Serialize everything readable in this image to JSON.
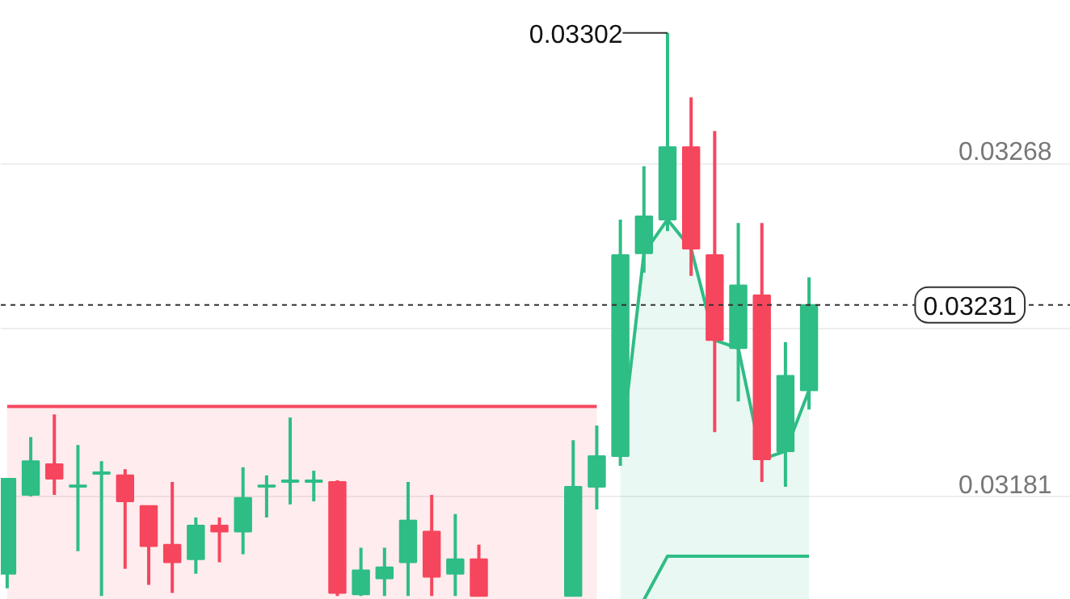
{
  "chart_data": {
    "type": "candlestick",
    "categories": [
      null,
      null,
      null,
      null,
      null,
      null,
      null,
      null,
      null,
      null,
      null,
      null,
      null,
      null,
      null,
      null,
      null,
      null,
      null,
      null,
      null,
      null,
      null,
      null,
      null,
      null,
      null,
      null,
      null,
      null,
      null,
      null,
      null,
      null,
      null
    ],
    "ohlc": [
      [
        0.031608,
        0.031856,
        0.03157,
        0.031856
      ],
      [
        0.031814,
        0.031965,
        0.03181,
        0.031902
      ],
      [
        0.031894,
        0.032024,
        0.031814,
        0.031856
      ],
      [
        0.031835,
        0.031944,
        0.031667,
        0.031839
      ],
      [
        0.031869,
        0.031902,
        0.03155,
        0.031873
      ],
      [
        0.031865,
        0.031881,
        0.031621,
        0.031797
      ],
      [
        0.031785,
        0.031785,
        0.031579,
        0.03168
      ],
      [
        0.031684,
        0.031848,
        0.031558,
        0.031638
      ],
      [
        0.031646,
        0.031755,
        0.031608,
        0.031734
      ],
      [
        0.031734,
        0.031755,
        0.031638,
        0.031718
      ],
      [
        0.031718,
        0.031886,
        0.031659,
        0.031806
      ],
      [
        0.031835,
        0.031865,
        0.031755,
        0.031839
      ],
      [
        0.031848,
        0.032016,
        0.031789,
        0.031852
      ],
      [
        0.031848,
        0.031877,
        0.031797,
        0.031852
      ],
      [
        0.031848,
        0.031852,
        0.03155,
        0.031558
      ],
      [
        0.031554,
        0.031676,
        0.03155,
        0.031617
      ],
      [
        0.031596,
        0.031676,
        0.03155,
        0.031625
      ],
      [
        0.031638,
        0.031848,
        0.03155,
        0.031747
      ],
      [
        0.031718,
        0.031814,
        0.03155,
        0.0316
      ],
      [
        0.031608,
        0.031764,
        0.03155,
        0.031646
      ],
      [
        0.031646,
        0.031684,
        0.03155,
        0.03155
      ],
      null,
      null,
      null,
      [
        0.03155,
        0.031957,
        0.03155,
        0.031835
      ],
      [
        0.031835,
        0.031995,
        0.031776,
        0.031915
      ],
      [
        0.031915,
        0.032533,
        0.03189,
        0.03244
      ],
      [
        0.032445,
        0.032672,
        0.032394,
        0.032541
      ],
      [
        0.032533,
        0.03302,
        0.032503,
        0.032722
      ],
      [
        0.032722,
        0.032852,
        0.032386,
        0.032457
      ],
      [
        0.03244,
        0.032764,
        0.031978,
        0.032218
      ],
      [
        0.032197,
        0.032524,
        0.032058,
        0.032361
      ],
      [
        0.032335,
        0.032524,
        0.031848,
        0.031907
      ],
      [
        0.031928,
        0.032213,
        0.031835,
        0.032125
      ],
      [
        0.032087,
        0.032382,
        0.032037,
        0.03231
      ]
    ],
    "series": [
      {
        "type": "area",
        "color": "#f6465d",
        "values": [
          0.032045,
          0.032045,
          0.032045,
          0.032045,
          0.032045,
          0.032045,
          0.032045,
          0.032045,
          0.032045,
          0.032045,
          0.032045,
          0.032045,
          0.032045,
          0.032045,
          0.032045,
          0.032045,
          0.032045,
          0.032045,
          0.032045,
          0.032045,
          0.032045,
          0.032045,
          0.032045,
          0.032045,
          0.032045,
          0.032045,
          null,
          null,
          null,
          null,
          null,
          null,
          null,
          null,
          null
        ]
      },
      {
        "type": "area",
        "color": "#2ebd85",
        "values": [
          null,
          null,
          null,
          null,
          null,
          null,
          null,
          null,
          null,
          null,
          null,
          null,
          null,
          null,
          null,
          null,
          null,
          null,
          null,
          null,
          null,
          null,
          null,
          null,
          null,
          null,
          0.031915,
          0.032445,
          0.032533,
          0.032457,
          0.032218,
          0.032197,
          0.031907,
          0.031928,
          0.032087
        ]
      },
      {
        "type": "line",
        "color": "#2ebd85",
        "values": [
          null,
          null,
          null,
          null,
          null,
          null,
          null,
          null,
          null,
          null,
          null,
          null,
          null,
          null,
          null,
          null,
          null,
          null,
          null,
          null,
          null,
          null,
          null,
          null,
          null,
          null,
          null,
          0.03154,
          0.031654,
          0.031654,
          0.031654,
          0.031654,
          0.031654,
          0.031654,
          0.031654
        ]
      }
    ],
    "ylim": [
      0.03154,
      0.033104
    ],
    "yticks": [
      0.03181,
      {
        "value": 0.03225,
        "label": null
      },
      0.03268
    ],
    "grid": "y",
    "ref_lines": [
      {
        "axis": "y",
        "value": 0.03231,
        "label": "0.03231",
        "line_style": "dashed"
      }
    ],
    "annotations": [
      "0.03302"
    ]
  }
}
